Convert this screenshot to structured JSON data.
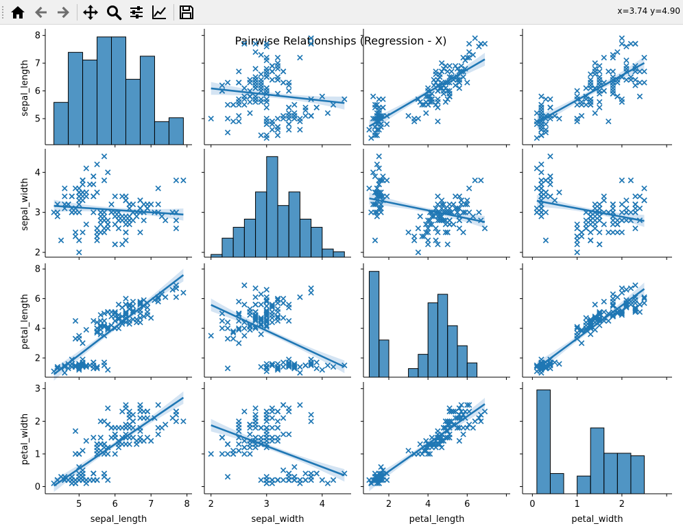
{
  "toolbar": {
    "coords": "x=3.74 y=4.90",
    "buttons": [
      {
        "name": "home-icon",
        "tooltip": "Reset original view"
      },
      {
        "name": "back-icon",
        "tooltip": "Back to previous view"
      },
      {
        "name": "forward-icon",
        "tooltip": "Forward to next view"
      },
      {
        "name": "pan-icon",
        "tooltip": "Pan axes"
      },
      {
        "name": "zoom-icon",
        "tooltip": "Zoom to rectangle"
      },
      {
        "name": "configure-subplots-icon",
        "tooltip": "Configure subplots"
      },
      {
        "name": "edit-axis-icon",
        "tooltip": "Edit axis, curve and image parameters"
      },
      {
        "name": "save-icon",
        "tooltip": "Save the figure"
      }
    ]
  },
  "chart_data": {
    "type": "scatter",
    "title": "Pairwise Relationships (Regression - X)",
    "variables": [
      "sepal_length",
      "sepal_width",
      "petal_length",
      "petal_width"
    ],
    "marker": "x",
    "color": "#1f77b4",
    "ci_color": "#c6dbef",
    "diag_kind": "hist",
    "ranges": {
      "sepal_length": [
        4.06,
        8.14
      ],
      "sepal_width": [
        1.88,
        4.52
      ],
      "petal_length": [
        0.705,
        8.195
      ],
      "petal_width": [
        -0.22,
        3.12
      ]
    },
    "ticks": {
      "sepal_length": [
        5,
        6,
        7,
        8
      ],
      "sepal_width": [
        2,
        3,
        4
      ],
      "petal_length": [
        2,
        4,
        6,
        8
      ],
      "petal_width": [
        0,
        1,
        2,
        3
      ]
    },
    "x_tick_labels": {
      "sepal_length": [
        "5",
        "6",
        "7",
        "8"
      ],
      "sepal_width": [
        "2",
        "3",
        "4"
      ],
      "petal_length": [
        "2",
        "4",
        "6"
      ],
      "petal_width": [
        "0",
        "1",
        "2"
      ]
    },
    "y_tick_labels": {
      "sepal_length": [
        "5",
        "6",
        "7",
        "8"
      ],
      "sepal_width": [
        "2",
        "3",
        "4"
      ],
      "petal_length": [
        "2",
        "4",
        "6",
        "8"
      ],
      "petal_width": [
        "0",
        "1",
        "2",
        "3"
      ]
    },
    "histograms": {
      "sepal_length": {
        "edges": [
          4.3,
          4.7,
          5.1,
          5.5,
          5.9,
          6.3,
          6.7,
          7.1,
          7.5,
          7.9
        ],
        "counts": [
          11,
          24,
          22,
          28,
          28,
          17,
          23,
          6,
          7
        ]
      },
      "sepal_width": {
        "edges": [
          2.0,
          2.2,
          2.4,
          2.6,
          2.8,
          3.0,
          3.2,
          3.4,
          3.6,
          3.8,
          4.0,
          4.2,
          4.4
        ],
        "counts": [
          1,
          7,
          11,
          14,
          24,
          37,
          19,
          24,
          14,
          11,
          3,
          2
        ]
      },
      "petal_length": {
        "edges": [
          1.0,
          1.5,
          2.0,
          2.5,
          3.0,
          3.5,
          4.0,
          4.5,
          5.0,
          5.5,
          6.0,
          6.5,
          6.9
        ],
        "counts": [
          37,
          13,
          0,
          0,
          3,
          8,
          26,
          29,
          18,
          11,
          5,
          0
        ]
      },
      "petal_width": {
        "edges": [
          0.1,
          0.4,
          0.7,
          1.0,
          1.3,
          1.6,
          1.9,
          2.2,
          2.5
        ],
        "counts": [
          41,
          8,
          0,
          7,
          26,
          16,
          16,
          15
        ]
      }
    },
    "regressions": [
      {
        "x": "sepal_width",
        "y": "sepal_length",
        "slope": -0.22,
        "intercept": 6.53
      },
      {
        "x": "petal_length",
        "y": "sepal_length",
        "slope": 0.41,
        "intercept": 4.31
      },
      {
        "x": "petal_width",
        "y": "sepal_length",
        "slope": 0.89,
        "intercept": 4.78
      },
      {
        "x": "sepal_length",
        "y": "sepal_width",
        "slope": -0.06,
        "intercept": 3.42
      },
      {
        "x": "petal_length",
        "y": "sepal_width",
        "slope": -0.1,
        "intercept": 3.45
      },
      {
        "x": "petal_width",
        "y": "sepal_width",
        "slope": -0.21,
        "intercept": 3.31
      },
      {
        "x": "sepal_length",
        "y": "petal_length",
        "slope": 1.86,
        "intercept": -7.1
      },
      {
        "x": "sepal_width",
        "y": "petal_length",
        "slope": -1.74,
        "intercept": 9.06
      },
      {
        "x": "petal_width",
        "y": "petal_length",
        "slope": 2.23,
        "intercept": 1.08
      },
      {
        "x": "sepal_length",
        "y": "petal_width",
        "slope": 0.75,
        "intercept": -3.2
      },
      {
        "x": "sepal_width",
        "y": "petal_width",
        "slope": -0.64,
        "intercept": 3.16
      },
      {
        "x": "petal_length",
        "y": "petal_width",
        "slope": 0.42,
        "intercept": -0.37
      }
    ],
    "samples": [
      [
        5.1,
        3.5,
        1.4,
        0.2
      ],
      [
        4.9,
        3.0,
        1.4,
        0.2
      ],
      [
        4.7,
        3.2,
        1.3,
        0.2
      ],
      [
        4.6,
        3.1,
        1.5,
        0.2
      ],
      [
        5.0,
        3.6,
        1.4,
        0.2
      ],
      [
        5.4,
        3.9,
        1.7,
        0.4
      ],
      [
        4.6,
        3.4,
        1.4,
        0.3
      ],
      [
        5.0,
        3.4,
        1.5,
        0.2
      ],
      [
        4.4,
        2.9,
        1.4,
        0.2
      ],
      [
        4.9,
        3.1,
        1.5,
        0.1
      ],
      [
        5.4,
        3.7,
        1.5,
        0.2
      ],
      [
        4.8,
        3.4,
        1.6,
        0.2
      ],
      [
        4.8,
        3.0,
        1.4,
        0.1
      ],
      [
        4.3,
        3.0,
        1.1,
        0.1
      ],
      [
        5.8,
        4.0,
        1.2,
        0.2
      ],
      [
        5.7,
        4.4,
        1.5,
        0.4
      ],
      [
        5.4,
        3.9,
        1.3,
        0.4
      ],
      [
        5.1,
        3.5,
        1.4,
        0.3
      ],
      [
        5.7,
        3.8,
        1.7,
        0.3
      ],
      [
        5.1,
        3.8,
        1.5,
        0.3
      ],
      [
        5.4,
        3.4,
        1.7,
        0.2
      ],
      [
        5.1,
        3.7,
        1.5,
        0.4
      ],
      [
        4.6,
        3.6,
        1.0,
        0.2
      ],
      [
        5.1,
        3.3,
        1.7,
        0.5
      ],
      [
        4.8,
        3.4,
        1.9,
        0.2
      ],
      [
        5.0,
        3.0,
        1.6,
        0.2
      ],
      [
        5.0,
        3.4,
        1.6,
        0.4
      ],
      [
        5.2,
        3.5,
        1.5,
        0.2
      ],
      [
        5.2,
        3.4,
        1.4,
        0.2
      ],
      [
        4.7,
        3.2,
        1.6,
        0.2
      ],
      [
        4.8,
        3.1,
        1.6,
        0.2
      ],
      [
        5.4,
        3.4,
        1.5,
        0.4
      ],
      [
        5.2,
        4.1,
        1.5,
        0.1
      ],
      [
        5.5,
        4.2,
        1.4,
        0.2
      ],
      [
        4.9,
        3.1,
        1.5,
        0.2
      ],
      [
        5.0,
        3.2,
        1.2,
        0.2
      ],
      [
        5.5,
        3.5,
        1.3,
        0.2
      ],
      [
        4.9,
        3.6,
        1.4,
        0.1
      ],
      [
        4.4,
        3.0,
        1.3,
        0.2
      ],
      [
        5.1,
        3.4,
        1.5,
        0.2
      ],
      [
        5.0,
        3.5,
        1.3,
        0.3
      ],
      [
        4.5,
        2.3,
        1.3,
        0.3
      ],
      [
        4.4,
        3.2,
        1.3,
        0.2
      ],
      [
        5.0,
        3.5,
        1.6,
        0.6
      ],
      [
        5.1,
        3.8,
        1.9,
        0.4
      ],
      [
        4.8,
        3.0,
        1.4,
        0.3
      ],
      [
        5.1,
        3.8,
        1.6,
        0.2
      ],
      [
        4.6,
        3.2,
        1.4,
        0.2
      ],
      [
        5.3,
        3.7,
        1.5,
        0.2
      ],
      [
        5.0,
        3.3,
        1.4,
        0.2
      ],
      [
        7.0,
        3.2,
        4.7,
        1.4
      ],
      [
        6.4,
        3.2,
        4.5,
        1.5
      ],
      [
        6.9,
        3.1,
        4.9,
        1.5
      ],
      [
        5.5,
        2.3,
        4.0,
        1.3
      ],
      [
        6.5,
        2.8,
        4.6,
        1.5
      ],
      [
        5.7,
        2.8,
        4.5,
        1.3
      ],
      [
        6.3,
        3.3,
        4.7,
        1.6
      ],
      [
        4.9,
        2.4,
        3.3,
        1.0
      ],
      [
        6.6,
        2.9,
        4.6,
        1.3
      ],
      [
        5.2,
        2.7,
        3.9,
        1.4
      ],
      [
        5.0,
        2.0,
        3.5,
        1.0
      ],
      [
        5.9,
        3.0,
        4.2,
        1.5
      ],
      [
        6.0,
        2.2,
        4.0,
        1.0
      ],
      [
        6.1,
        2.9,
        4.7,
        1.4
      ],
      [
        5.6,
        2.9,
        3.6,
        1.3
      ],
      [
        6.7,
        3.1,
        4.4,
        1.4
      ],
      [
        5.6,
        3.0,
        4.5,
        1.5
      ],
      [
        5.8,
        2.7,
        4.1,
        1.0
      ],
      [
        6.2,
        2.2,
        4.5,
        1.5
      ],
      [
        5.6,
        2.5,
        3.9,
        1.1
      ],
      [
        5.9,
        3.2,
        4.8,
        1.8
      ],
      [
        6.1,
        2.8,
        4.0,
        1.3
      ],
      [
        6.3,
        2.5,
        4.9,
        1.5
      ],
      [
        6.1,
        2.8,
        4.7,
        1.2
      ],
      [
        6.4,
        2.9,
        4.3,
        1.3
      ],
      [
        6.6,
        3.0,
        4.4,
        1.4
      ],
      [
        6.8,
        2.8,
        4.8,
        1.4
      ],
      [
        6.7,
        3.0,
        5.0,
        1.7
      ],
      [
        6.0,
        2.9,
        4.5,
        1.5
      ],
      [
        5.7,
        2.6,
        3.5,
        1.0
      ],
      [
        5.5,
        2.4,
        3.8,
        1.1
      ],
      [
        5.5,
        2.4,
        3.7,
        1.0
      ],
      [
        5.8,
        2.7,
        3.9,
        1.2
      ],
      [
        6.0,
        2.7,
        5.1,
        1.6
      ],
      [
        5.4,
        3.0,
        4.5,
        1.5
      ],
      [
        6.0,
        3.4,
        4.5,
        1.6
      ],
      [
        6.7,
        3.1,
        4.7,
        1.5
      ],
      [
        6.3,
        2.3,
        4.4,
        1.3
      ],
      [
        5.6,
        3.0,
        4.1,
        1.3
      ],
      [
        5.5,
        2.5,
        4.0,
        1.3
      ],
      [
        5.5,
        2.6,
        4.4,
        1.2
      ],
      [
        6.1,
        3.0,
        4.6,
        1.4
      ],
      [
        5.8,
        2.6,
        4.0,
        1.2
      ],
      [
        5.0,
        2.3,
        3.3,
        1.0
      ],
      [
        5.6,
        2.7,
        4.2,
        1.3
      ],
      [
        5.7,
        3.0,
        4.2,
        1.2
      ],
      [
        5.7,
        2.9,
        4.2,
        1.3
      ],
      [
        6.2,
        2.9,
        4.3,
        1.3
      ],
      [
        5.1,
        2.5,
        3.0,
        1.1
      ],
      [
        5.7,
        2.8,
        4.1,
        1.3
      ],
      [
        6.3,
        3.3,
        6.0,
        2.5
      ],
      [
        5.8,
        2.7,
        5.1,
        1.9
      ],
      [
        7.1,
        3.0,
        5.9,
        2.1
      ],
      [
        6.3,
        2.9,
        5.6,
        1.8
      ],
      [
        6.5,
        3.0,
        5.8,
        2.2
      ],
      [
        7.6,
        3.0,
        6.6,
        2.1
      ],
      [
        4.9,
        2.5,
        4.5,
        1.7
      ],
      [
        7.3,
        2.9,
        6.3,
        1.8
      ],
      [
        6.7,
        2.5,
        5.8,
        1.8
      ],
      [
        7.2,
        3.6,
        6.1,
        2.5
      ],
      [
        6.5,
        3.2,
        5.1,
        2.0
      ],
      [
        6.4,
        2.7,
        5.3,
        1.9
      ],
      [
        6.8,
        3.0,
        5.5,
        2.1
      ],
      [
        5.7,
        2.5,
        5.0,
        2.0
      ],
      [
        5.8,
        2.8,
        5.1,
        2.4
      ],
      [
        6.4,
        3.2,
        5.3,
        2.3
      ],
      [
        6.5,
        3.0,
        5.5,
        1.8
      ],
      [
        7.7,
        3.8,
        6.7,
        2.2
      ],
      [
        7.7,
        2.6,
        6.9,
        2.3
      ],
      [
        6.0,
        2.2,
        5.0,
        1.5
      ],
      [
        6.9,
        3.2,
        5.7,
        2.3
      ],
      [
        5.6,
        2.8,
        4.9,
        2.0
      ],
      [
        7.7,
        2.8,
        6.7,
        2.0
      ],
      [
        6.3,
        2.7,
        4.9,
        1.8
      ],
      [
        6.7,
        3.3,
        5.7,
        2.1
      ],
      [
        7.2,
        3.2,
        6.0,
        1.8
      ],
      [
        6.2,
        2.8,
        4.8,
        1.8
      ],
      [
        6.1,
        3.0,
        4.9,
        1.8
      ],
      [
        6.4,
        2.8,
        5.6,
        2.1
      ],
      [
        7.2,
        3.0,
        5.8,
        1.6
      ],
      [
        7.4,
        2.8,
        6.1,
        1.9
      ],
      [
        7.9,
        3.8,
        6.4,
        2.0
      ],
      [
        6.4,
        2.8,
        5.6,
        2.2
      ],
      [
        6.3,
        2.8,
        5.1,
        1.5
      ],
      [
        6.1,
        2.6,
        5.6,
        1.4
      ],
      [
        7.7,
        3.0,
        6.1,
        2.3
      ],
      [
        6.3,
        3.4,
        5.6,
        2.4
      ],
      [
        6.4,
        3.1,
        5.5,
        1.8
      ],
      [
        6.0,
        3.0,
        4.8,
        1.8
      ],
      [
        6.9,
        3.1,
        5.4,
        2.1
      ],
      [
        6.7,
        3.1,
        5.6,
        2.4
      ],
      [
        6.9,
        3.1,
        5.1,
        2.3
      ],
      [
        5.8,
        2.7,
        5.1,
        1.9
      ],
      [
        6.8,
        3.2,
        5.9,
        2.3
      ],
      [
        6.7,
        3.3,
        5.7,
        2.5
      ],
      [
        6.7,
        3.0,
        5.2,
        2.3
      ],
      [
        6.3,
        2.5,
        5.0,
        1.9
      ],
      [
        6.5,
        3.0,
        5.2,
        2.0
      ],
      [
        6.2,
        3.4,
        5.4,
        2.3
      ],
      [
        5.9,
        3.0,
        5.1,
        1.8
      ]
    ]
  }
}
